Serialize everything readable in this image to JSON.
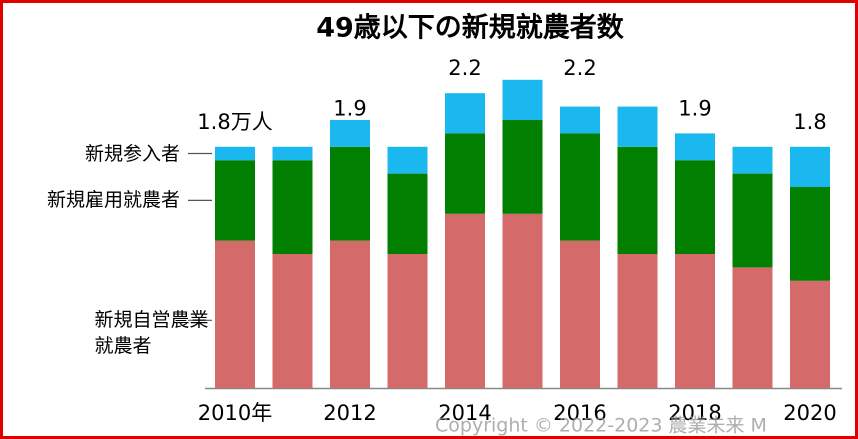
{
  "chart_data": {
    "type": "stacked_bar",
    "title": "49歳以下の新規就農者数",
    "categories": [
      "2010年",
      null,
      "2012",
      null,
      "2014",
      null,
      "2016",
      null,
      "2018",
      null,
      "2020"
    ],
    "series": [
      {
        "name": "新規自営農業就農者",
        "color": "#d46a6a",
        "values": [
          1.1,
          1.0,
          1.1,
          1.0,
          1.3,
          1.3,
          1.1,
          1.0,
          1.0,
          0.9,
          0.8
        ]
      },
      {
        "name": "新規雇用就農者",
        "color": "#007f00",
        "values": [
          0.6,
          0.7,
          0.7,
          0.6,
          0.6,
          0.7,
          0.8,
          0.8,
          0.7,
          0.7,
          0.7
        ]
      },
      {
        "name": "新規参入者",
        "color": "#1ab8ee",
        "values": [
          0.1,
          0.1,
          0.2,
          0.2,
          0.3,
          0.3,
          0.2,
          0.3,
          0.2,
          0.2,
          0.3
        ]
      }
    ],
    "totals": [
      1.8,
      null,
      1.9,
      null,
      2.2,
      null,
      2.2,
      null,
      1.9,
      null,
      1.8
    ],
    "total_labels": [
      "1.8万人",
      null,
      "1.9",
      null,
      "2.2",
      null,
      "2.2",
      null,
      "1.9",
      null,
      "1.8"
    ],
    "watermark": "Copyright © 2022-2023 農業未来 M"
  }
}
